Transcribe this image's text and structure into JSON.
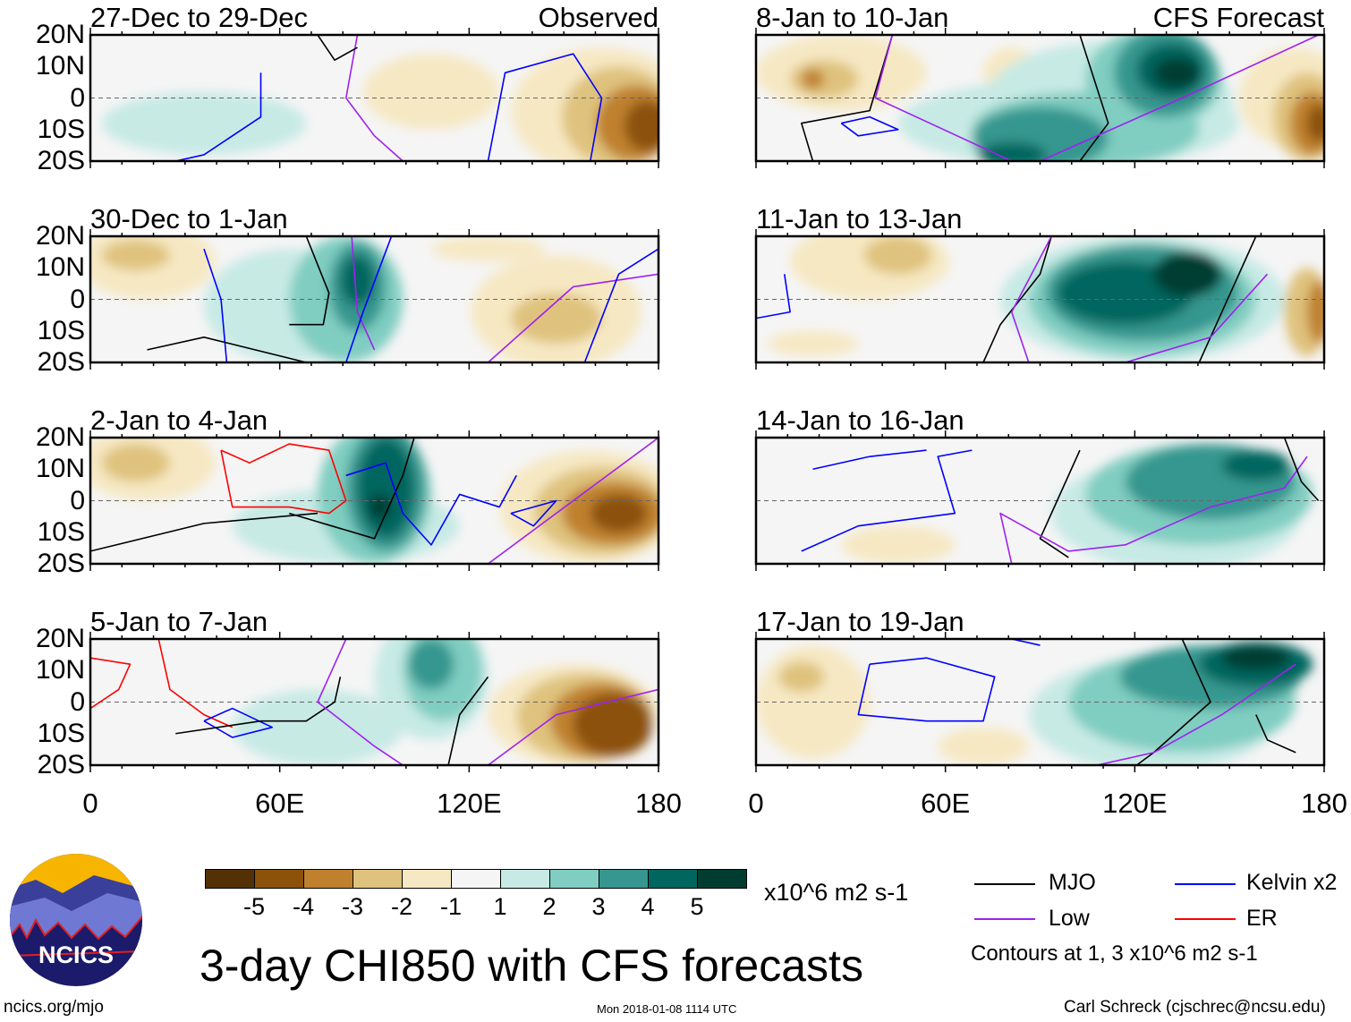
{
  "header": {
    "observed_label": "Observed",
    "forecast_label": "CFS Forecast"
  },
  "panels": [
    {
      "title": "27-Dec to 29-Dec",
      "type": "observed"
    },
    {
      "title": "8-Jan to 10-Jan",
      "type": "forecast"
    },
    {
      "title": "30-Dec to 1-Jan",
      "type": "observed"
    },
    {
      "title": "11-Jan to 13-Jan",
      "type": "forecast"
    },
    {
      "title": "2-Jan to 4-Jan",
      "type": "observed"
    },
    {
      "title": "14-Jan to 16-Jan",
      "type": "forecast"
    },
    {
      "title": "5-Jan to 7-Jan",
      "type": "observed"
    },
    {
      "title": "17-Jan to 19-Jan",
      "type": "forecast"
    }
  ],
  "lat_labels": [
    "20N",
    "10N",
    "0",
    "10S",
    "20S"
  ],
  "lon_labels": [
    "0",
    "60E",
    "120E",
    "180"
  ],
  "colorbar": {
    "levels": [
      "-5",
      "-4",
      "-3",
      "-2",
      "-1",
      "1",
      "2",
      "3",
      "4",
      "5"
    ],
    "colors": [
      "#543005",
      "#8c510a",
      "#bf812d",
      "#dfc27d",
      "#f6e8c3",
      "#f5f5f5",
      "#c7eae5",
      "#80cdc1",
      "#35978f",
      "#01665e",
      "#003c30"
    ],
    "units": "x10^6 m2 s-1"
  },
  "legend": {
    "items": [
      {
        "label": "MJO",
        "color": "#000000"
      },
      {
        "label": "Kelvin x2",
        "color": "#0000ff"
      },
      {
        "label": "Low",
        "color": "#a020f0"
      },
      {
        "label": "ER",
        "color": "#ff0000"
      }
    ],
    "contours_note": "Contours at 1, 3 x10^6 m2 s-1"
  },
  "title": "3-day CHI850 with CFS forecasts",
  "logo_text": "NCICS",
  "footer": {
    "url": "ncics.org/mjo",
    "timestamp": "Mon 2018-01-08 1114 UTC",
    "credit": "Carl Schreck (cjschrec@ncsu.edu)"
  }
}
